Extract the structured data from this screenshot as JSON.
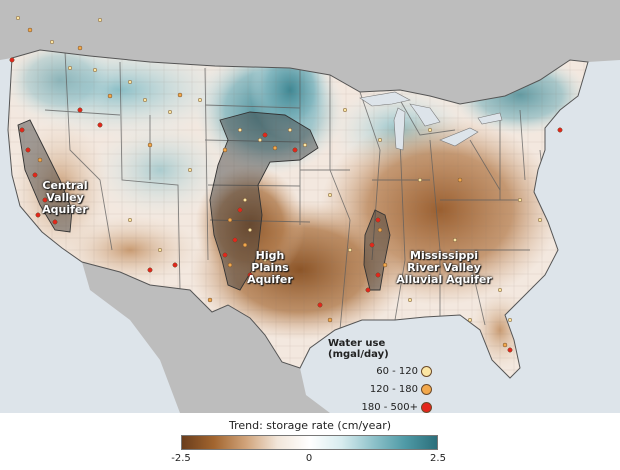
{
  "aquifers": {
    "central_valley": [
      "Central",
      "Valley",
      "Aquifer"
    ],
    "high_plains": [
      "High",
      "Plains",
      "Aquifer"
    ],
    "mississippi": [
      "Mississippi",
      "River Valley",
      "Alluvial Aquifer"
    ]
  },
  "water_use": {
    "title": "Water use (mgal/day)",
    "items": [
      {
        "label": "60 - 120",
        "color": "#fbe6a4"
      },
      {
        "label": "120 - 180",
        "color": "#f2a84c"
      },
      {
        "label": "180 - 500+",
        "color": "#e3261c"
      }
    ]
  },
  "trend": {
    "title": "Trend: storage rate (cm/year)",
    "ticks": [
      "-2.5",
      "0",
      "2.5"
    ],
    "colors": {
      "loss": "#6a3d1c",
      "neutral": "#ffffff",
      "gain": "#2b6f7b"
    }
  }
}
